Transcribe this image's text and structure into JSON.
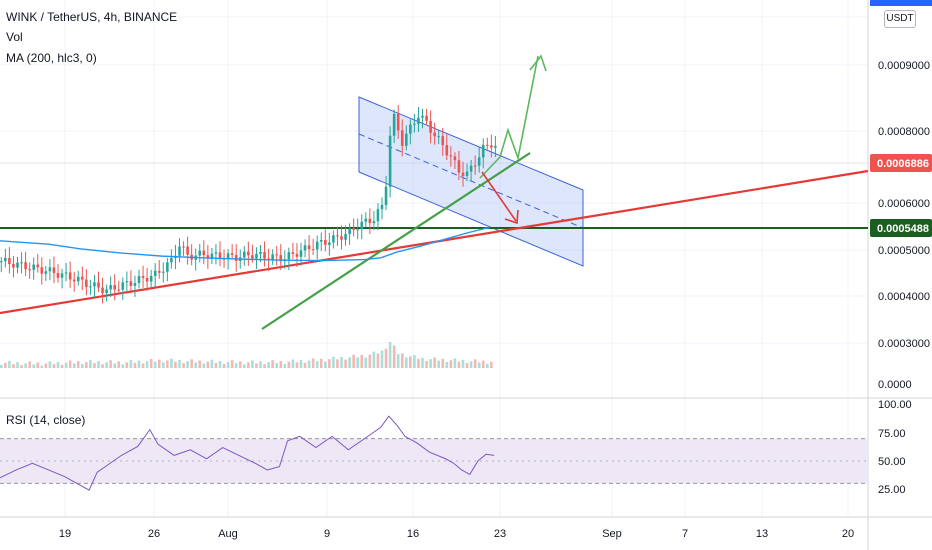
{
  "header": {
    "symbol_line": "WINK / TetherUS, 4h, BINANCE",
    "vol_label": "Vol",
    "ma_label": "MA (200, hlc3, 0)",
    "rsi_label": "RSI (14, close)",
    "unit_label": "USDT"
  },
  "colors": {
    "background": "#ffffff",
    "grid": "#f0f3fa",
    "candle_up": "#26a69a",
    "candle_down": "#ef5350",
    "ma_line": "#2196f3",
    "trend_red": "#e53935",
    "trend_green": "#43a047",
    "support_line": "#1b5e20",
    "channel_fill": "#b3c7f7",
    "channel_border": "#3d63d8",
    "rsi_line": "#7e57c2",
    "rsi_band": "#ede7f6",
    "current_price_box": "#ef5350",
    "support_price_box": "#1b5e20"
  },
  "chart_data": {
    "type": "candlestick",
    "title": "WINK / TetherUS, 4h, BINANCE",
    "x_ticks": [
      "19",
      "26",
      "Aug",
      "9",
      "16",
      "23",
      "Sep",
      "7",
      "13",
      "20"
    ],
    "y_ticks": [
      "0.0009000",
      "0.0008000",
      "0.0006000",
      "0.0005000",
      "0.0004000",
      "0.0003000",
      "0.0000"
    ],
    "current_price": "0.0006886",
    "support_price": "0.0005488",
    "rsi_ticks": [
      "100.00",
      "75.00",
      "50.00",
      "25.00"
    ],
    "rsi_levels": [
      70,
      30
    ],
    "price_path": [
      [
        0,
        0.00036
      ],
      [
        6,
        0.000345
      ],
      [
        12,
        0.00033
      ],
      [
        18,
        0.00031
      ],
      [
        22,
        0.00029
      ],
      [
        26,
        0.000275
      ],
      [
        30,
        0.00029
      ],
      [
        34,
        0.000305
      ],
      [
        38,
        0.00032
      ],
      [
        42,
        0.00036
      ],
      [
        44,
        0.00041
      ],
      [
        46,
        0.000375
      ],
      [
        50,
        0.00038
      ],
      [
        54,
        0.000375
      ],
      [
        58,
        0.000372
      ],
      [
        62,
        0.00038
      ],
      [
        66,
        0.000372
      ],
      [
        70,
        0.00037
      ],
      [
        74,
        0.00039
      ],
      [
        78,
        0.00041
      ],
      [
        82,
        0.000425
      ],
      [
        86,
        0.000445
      ],
      [
        88,
        0.000465
      ],
      [
        92,
        0.000485
      ],
      [
        94,
        0.00052
      ],
      [
        95,
        0.00059
      ],
      [
        96,
        0.00073
      ],
      [
        97,
        0.00078
      ],
      [
        99,
        0.00071
      ],
      [
        101,
        0.00075
      ],
      [
        103,
        0.00079
      ],
      [
        105,
        0.000765
      ],
      [
        107,
        0.00073
      ],
      [
        109,
        0.0007
      ],
      [
        111,
        0.000665
      ],
      [
        113,
        0.000625
      ],
      [
        115,
        0.000615
      ],
      [
        117,
        0.00065
      ],
      [
        119,
        0.00069
      ],
      [
        121,
        0.000705
      ],
      [
        123,
        0.00069
      ]
    ],
    "ma_path": [
      [
        0,
        0.00042
      ],
      [
        12,
        0.00041
      ],
      [
        20,
        0.000396
      ],
      [
        30,
        0.000384
      ],
      [
        40,
        0.000375
      ],
      [
        50,
        0.00037
      ],
      [
        60,
        0.000366
      ],
      [
        70,
        0.000363
      ],
      [
        80,
        0.000362
      ],
      [
        90,
        0.000365
      ],
      [
        94,
        0.00037
      ],
      [
        98,
        0.000387
      ],
      [
        104,
        0.000405
      ],
      [
        110,
        0.000425
      ],
      [
        116,
        0.000445
      ],
      [
        121,
        0.00046
      ]
    ],
    "volume_path": [
      [
        0,
        0.8
      ],
      [
        10,
        0.6
      ],
      [
        20,
        1.0
      ],
      [
        30,
        0.9
      ],
      [
        40,
        1.4
      ],
      [
        50,
        1.1
      ],
      [
        60,
        0.9
      ],
      [
        70,
        1.0
      ],
      [
        80,
        1.6
      ],
      [
        86,
        2.2
      ],
      [
        90,
        2.6
      ],
      [
        94,
        3.6
      ],
      [
        96,
        6.0
      ],
      [
        98,
        3.2
      ],
      [
        100,
        2.6
      ],
      [
        104,
        1.8
      ],
      [
        110,
        1.5
      ],
      [
        116,
        1.2
      ],
      [
        122,
        1.0
      ]
    ],
    "rsi_path": [
      [
        0,
        35
      ],
      [
        4,
        42
      ],
      [
        8,
        48
      ],
      [
        12,
        42
      ],
      [
        16,
        36
      ],
      [
        20,
        28
      ],
      [
        22,
        24
      ],
      [
        24,
        40
      ],
      [
        26,
        45
      ],
      [
        30,
        55
      ],
      [
        34,
        63
      ],
      [
        37,
        78
      ],
      [
        39,
        65
      ],
      [
        43,
        55
      ],
      [
        47,
        60
      ],
      [
        51,
        52
      ],
      [
        55,
        62
      ],
      [
        59,
        55
      ],
      [
        63,
        48
      ],
      [
        66,
        42
      ],
      [
        69,
        45
      ],
      [
        71,
        68
      ],
      [
        74,
        72
      ],
      [
        78,
        62
      ],
      [
        82,
        72
      ],
      [
        86,
        60
      ],
      [
        90,
        70
      ],
      [
        94,
        80
      ],
      [
        96,
        90
      ],
      [
        98,
        82
      ],
      [
        100,
        72
      ],
      [
        103,
        66
      ],
      [
        106,
        58
      ],
      [
        110,
        52
      ],
      [
        112,
        48
      ],
      [
        114,
        42
      ],
      [
        116,
        38
      ],
      [
        118,
        50
      ],
      [
        120,
        56
      ],
      [
        122,
        55
      ]
    ]
  }
}
